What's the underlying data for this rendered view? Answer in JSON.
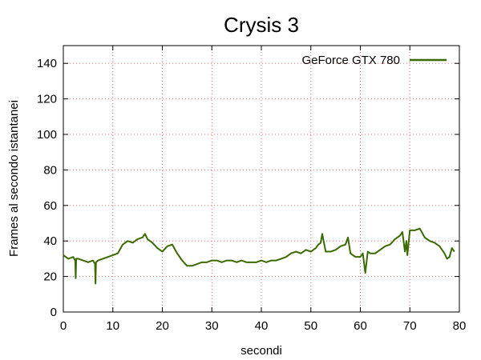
{
  "chart_data": {
    "type": "line",
    "title": "Crysis 3",
    "xlabel": "secondi",
    "ylabel": "Frames al secondo istantanei",
    "xlim": [
      0,
      80
    ],
    "ylim": [
      0,
      150
    ],
    "xticks": [
      0,
      10,
      20,
      30,
      40,
      50,
      60,
      70,
      80
    ],
    "yticks": [
      0,
      20,
      40,
      60,
      80,
      100,
      120,
      140
    ],
    "xtick_labels": [
      "0",
      "10",
      "20",
      "30",
      "40",
      "50",
      "60",
      "70",
      "80"
    ],
    "ytick_labels": [
      "0",
      "20",
      "40",
      "60",
      "80",
      "100",
      "120",
      "140"
    ],
    "grid": true,
    "legend_position": "top-right",
    "series": [
      {
        "name": "GeForce GTX 780",
        "color": "#3a6a00",
        "x": [
          0,
          1,
          2,
          2.4,
          2.5,
          2.6,
          3,
          4,
          5,
          6,
          6.4,
          6.5,
          6.6,
          7,
          8,
          9,
          10,
          11,
          12,
          13,
          14,
          15,
          16,
          16.5,
          17,
          18,
          19,
          20,
          21,
          22,
          23,
          24,
          25,
          26,
          27,
          28,
          29,
          30,
          31,
          32,
          33,
          34,
          35,
          36,
          37,
          38,
          39,
          40,
          41,
          42,
          43,
          44,
          45,
          46,
          47,
          48,
          49,
          50,
          51,
          51.5,
          52,
          52.3,
          53,
          54,
          55,
          56,
          57,
          57.5,
          58,
          59,
          60,
          60.5,
          61,
          61.5,
          62,
          63,
          64,
          65,
          66,
          67,
          68,
          68.5,
          69,
          69.3,
          69.5,
          70,
          71,
          72,
          73,
          74,
          75,
          76,
          77,
          77.5,
          78,
          78.5,
          79
        ],
        "y": [
          32,
          30,
          31,
          29,
          19,
          30,
          30,
          29,
          28,
          29,
          27,
          16,
          28,
          29,
          30,
          31,
          32,
          33,
          38,
          40,
          39,
          41,
          42,
          44,
          41,
          39,
          36,
          34,
          37,
          38,
          33,
          29,
          26,
          26,
          27,
          28,
          28,
          29,
          29,
          28,
          29,
          29,
          28,
          29,
          28,
          28,
          28,
          29,
          28,
          29,
          29,
          30,
          31,
          33,
          34,
          33,
          35,
          34,
          36,
          38,
          39,
          44,
          34,
          34,
          35,
          37,
          38,
          42,
          33,
          31,
          31,
          33,
          22,
          34,
          33,
          33,
          35,
          37,
          38,
          41,
          43,
          45,
          34,
          40,
          32,
          46,
          46,
          47,
          42,
          40,
          39,
          37,
          33,
          30,
          31,
          36,
          34
        ]
      }
    ]
  }
}
